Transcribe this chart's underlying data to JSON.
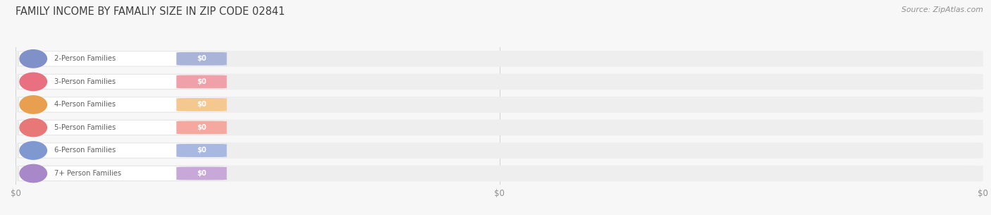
{
  "title": "FAMILY INCOME BY FAMALIY SIZE IN ZIP CODE 02841",
  "source": "Source: ZipAtlas.com",
  "categories": [
    "2-Person Families",
    "3-Person Families",
    "4-Person Families",
    "5-Person Families",
    "6-Person Families",
    "7+ Person Families"
  ],
  "values": [
    0,
    0,
    0,
    0,
    0,
    0
  ],
  "bar_colors": [
    "#aab4d8",
    "#f0a0a8",
    "#f5c890",
    "#f5a8a0",
    "#a8b8e0",
    "#c8a8d8"
  ],
  "dot_colors": [
    "#8090c8",
    "#e87080",
    "#e8a050",
    "#e87878",
    "#8098d0",
    "#a888c8"
  ],
  "bg_color": "#f7f7f7",
  "bar_bg_color": "#eeeeee",
  "title_color": "#404040",
  "label_text_color": "#606060",
  "value_text_color": "#ffffff",
  "source_color": "#909090",
  "tick_labels": [
    "$0",
    "$0",
    "$0"
  ]
}
